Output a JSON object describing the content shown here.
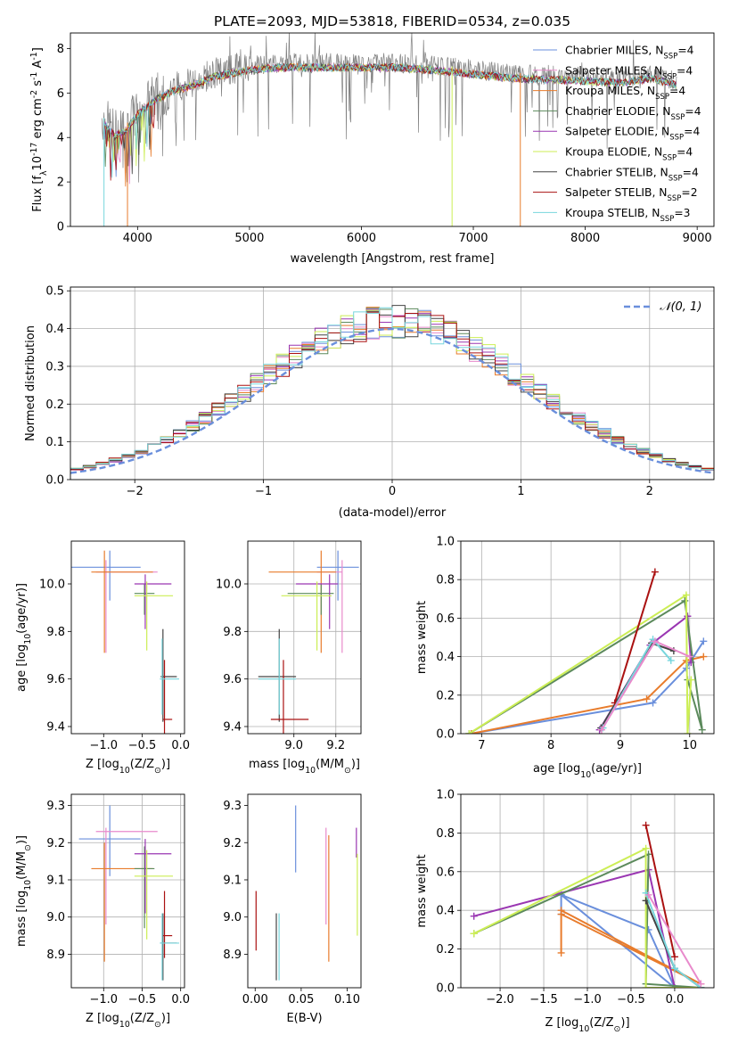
{
  "title": "PLATE=2093, MJD=53818, FIBERID=0534, z=0.035",
  "colors": {
    "chabrier_miles": "#6a8fdc",
    "salpeter_miles": "#e88acc",
    "kroupa_miles": "#e87c2c",
    "chabrier_elodie": "#5c8a5c",
    "salpeter_elodie": "#9a36b2",
    "kroupa_elodie": "#ccee55",
    "chabrier_stelib": "#444444",
    "salpeter_stelib": "#aa1111",
    "kroupa_stelib": "#77d6dd",
    "data": "#808080",
    "grid": "#b0b0b0"
  },
  "legend": [
    {
      "label": "Chabrier MILES, N",
      "sub": "SSP",
      "tail": "=4",
      "color": "#6a8fdc"
    },
    {
      "label": "Salpeter MILES, N",
      "sub": "SSP",
      "tail": "=4",
      "color": "#e88acc"
    },
    {
      "label": "Kroupa MILES, N",
      "sub": "SSP",
      "tail": "=4",
      "color": "#e87c2c"
    },
    {
      "label": "Chabrier ELODIE, N",
      "sub": "SSP",
      "tail": "=4",
      "color": "#5c8a5c"
    },
    {
      "label": "Salpeter ELODIE, N",
      "sub": "SSP",
      "tail": "=4",
      "color": "#9a36b2"
    },
    {
      "label": "Kroupa ELODIE, N",
      "sub": "SSP",
      "tail": "=4",
      "color": "#ccee55"
    },
    {
      "label": "Chabrier STELIB, N",
      "sub": "SSP",
      "tail": "=4",
      "color": "#444444"
    },
    {
      "label": "Salpeter STELIB, N",
      "sub": "SSP",
      "tail": "=2",
      "color": "#aa1111"
    },
    {
      "label": "Kroupa STELIB, N",
      "sub": "SSP",
      "tail": "=3",
      "color": "#77d6dd"
    }
  ],
  "chart_data": [
    {
      "id": "spectrum",
      "type": "line",
      "xlabel": "wavelength [Angstrom, rest frame]",
      "ylabel_parts": [
        "Flux [f",
        "λ",
        "10",
        "-17",
        " erg cm",
        "-2",
        " s",
        "-1",
        " A",
        "-1",
        "]"
      ],
      "xlim": [
        3400,
        9150
      ],
      "ylim": [
        0,
        8.7
      ],
      "xticks": [
        4000,
        5000,
        6000,
        7000,
        8000,
        9000
      ],
      "yticks": [
        0,
        2,
        4,
        6,
        8
      ],
      "grid": false,
      "legend_position": "top-right",
      "continuum_x": [
        3680,
        3800,
        3900,
        4000,
        4150,
        4300,
        4500,
        4700,
        5000,
        5300,
        5600,
        6000,
        6300,
        6600,
        7000,
        7400,
        7700,
        8000,
        8300,
        8600,
        8820
      ],
      "continuum_y": [
        5.0,
        4.3,
        4.6,
        5.3,
        5.9,
        6.3,
        6.6,
        7.0,
        7.3,
        7.4,
        7.4,
        7.4,
        7.4,
        7.3,
        7.1,
        6.9,
        6.85,
        6.8,
        6.7,
        6.9,
        6.6
      ]
    },
    {
      "id": "residuals",
      "type": "step-histogram",
      "xlabel": "(data-model)/error",
      "ylabel": "Normed distribution",
      "xlim": [
        -2.5,
        2.5
      ],
      "ylim": [
        0,
        0.51
      ],
      "xticks": [
        -2,
        -1,
        0,
        1,
        2
      ],
      "yticks": [
        0.0,
        0.1,
        0.2,
        0.3,
        0.4,
        0.5
      ],
      "grid": true,
      "bin_width": 0.1,
      "reference": {
        "label": "𝒩(0, 1)",
        "mean": 0,
        "sigma": 1
      },
      "legend_position": "top-right"
    },
    {
      "id": "age_vs_Z",
      "type": "errorbar",
      "xlabel_parts": [
        "Z [log",
        "10",
        "(Z/Z",
        "⊙",
        ")]"
      ],
      "ylabel_parts": [
        "age  [log",
        "10",
        "(age/yr)]"
      ],
      "xlim": [
        -1.42,
        0.05
      ],
      "ylim": [
        9.37,
        10.18
      ],
      "xticks": [
        -1.0,
        -0.5,
        0.0
      ],
      "yticks": [
        9.4,
        9.6,
        9.8,
        10.0
      ],
      "grid": false,
      "points": [
        {
          "model": "chabrier_miles",
          "x": -0.92,
          "y": 10.07,
          "xerr": [
            0.5,
            0.4
          ],
          "yerr": [
            0.14,
            0.07
          ]
        },
        {
          "model": "salpeter_miles",
          "x": -0.97,
          "y": 10.05,
          "xerr": [
            0.13,
            0.67
          ],
          "yerr": [
            0.34,
            0.05
          ]
        },
        {
          "model": "kroupa_miles",
          "x": -0.99,
          "y": 10.05,
          "xerr": [
            0.17,
            0.63
          ],
          "yerr": [
            0.34,
            0.09
          ]
        },
        {
          "model": "chabrier_elodie",
          "x": -0.47,
          "y": 9.96,
          "xerr": [
            0.13,
            0.13
          ],
          "yerr": [
            0.09,
            0.04
          ]
        },
        {
          "model": "salpeter_elodie",
          "x": -0.46,
          "y": 10.0,
          "xerr": [
            0.14,
            0.34
          ],
          "yerr": [
            0.19,
            0.04
          ]
        },
        {
          "model": "kroupa_elodie",
          "x": -0.44,
          "y": 9.95,
          "xerr": [
            0.16,
            0.34
          ],
          "yerr": [
            0.23,
            0.06
          ]
        },
        {
          "model": "chabrier_stelib",
          "x": -0.23,
          "y": 9.61,
          "xerr": [
            0.03,
            0.18
          ],
          "yerr": [
            0.19,
            0.2
          ]
        },
        {
          "model": "salpeter_stelib",
          "x": -0.21,
          "y": 9.43,
          "xerr": [
            0.02,
            0.1
          ],
          "yerr": [
            0.08,
            0.25
          ]
        },
        {
          "model": "kroupa_stelib",
          "x": -0.24,
          "y": 9.6,
          "xerr": [
            0.03,
            0.22
          ],
          "yerr": [
            0.15,
            0.17
          ]
        }
      ]
    },
    {
      "id": "age_vs_mass",
      "type": "errorbar",
      "xlabel_parts": [
        "mass [log",
        "10",
        "(M/M",
        "⊙",
        ")]"
      ],
      "ylabel": "",
      "xlim": [
        8.78,
        9.32
      ],
      "ylim": [
        9.37,
        10.18
      ],
      "xticks": [
        9.0,
        9.2
      ],
      "yticks": [
        9.4,
        9.6,
        9.8,
        10.0
      ],
      "grid": true,
      "points": [
        {
          "model": "chabrier_miles",
          "x": 9.21,
          "y": 10.07,
          "xerr": [
            0.1,
            0.1
          ],
          "yerr": [
            0.14,
            0.07
          ]
        },
        {
          "model": "salpeter_miles",
          "x": 9.23,
          "y": 10.05,
          "xerr": [
            0.12,
            0.0
          ],
          "yerr": [
            0.34,
            0.05
          ]
        },
        {
          "model": "kroupa_miles",
          "x": 9.13,
          "y": 10.05,
          "xerr": [
            0.25,
            0.07
          ],
          "yerr": [
            0.34,
            0.09
          ]
        },
        {
          "model": "chabrier_elodie",
          "x": 9.13,
          "y": 9.96,
          "xerr": [
            0.16,
            0.06
          ],
          "yerr": [
            0.09,
            0.04
          ]
        },
        {
          "model": "salpeter_elodie",
          "x": 9.17,
          "y": 10.0,
          "xerr": [
            0.16,
            0.04
          ],
          "yerr": [
            0.19,
            0.04
          ]
        },
        {
          "model": "kroupa_elodie",
          "x": 9.11,
          "y": 9.95,
          "xerr": [
            0.17,
            0.07
          ],
          "yerr": [
            0.23,
            0.06
          ]
        },
        {
          "model": "chabrier_stelib",
          "x": 8.93,
          "y": 9.61,
          "xerr": [
            0.1,
            0.08
          ],
          "yerr": [
            0.19,
            0.2
          ]
        },
        {
          "model": "salpeter_stelib",
          "x": 8.95,
          "y": 9.43,
          "xerr": [
            0.06,
            0.12
          ],
          "yerr": [
            0.08,
            0.25
          ]
        },
        {
          "model": "kroupa_stelib",
          "x": 8.93,
          "y": 9.6,
          "xerr": [
            0.1,
            0.08
          ],
          "yerr": [
            0.15,
            0.17
          ]
        }
      ]
    },
    {
      "id": "weight_vs_age",
      "type": "line",
      "xlabel_parts": [
        "age  [log",
        "10",
        "(age/yr)]"
      ],
      "ylabel": "mass weight",
      "xlim": [
        6.7,
        10.35
      ],
      "ylim": [
        0,
        1.0
      ],
      "xticks": [
        7,
        8,
        9,
        10
      ],
      "yticks": [
        0.0,
        0.2,
        0.4,
        0.6,
        0.8,
        1.0
      ],
      "grid": true,
      "series": [
        {
          "model": "chabrier_miles",
          "x": [
            6.85,
            9.47,
            9.95,
            10.2
          ],
          "y": [
            0.0,
            0.16,
            0.34,
            0.48
          ]
        },
        {
          "model": "kroupa_miles",
          "x": [
            6.85,
            9.38,
            9.95,
            10.2
          ],
          "y": [
            0.0,
            0.18,
            0.38,
            0.4
          ]
        },
        {
          "model": "salpeter_elodie",
          "x": [
            8.7,
            9.43,
            9.97,
            10.02
          ],
          "y": [
            0.02,
            0.46,
            0.61,
            0.37
          ]
        },
        {
          "model": "chabrier_elodie",
          "x": [
            6.82,
            9.93,
            10.18,
            9.97
          ],
          "y": [
            0.0,
            0.69,
            0.02,
            0.28
          ]
        },
        {
          "model": "kroupa_elodie",
          "x": [
            6.82,
            9.95,
            9.97,
            10.02
          ],
          "y": [
            0.0,
            0.72,
            0.0,
            0.28
          ]
        },
        {
          "model": "chabrier_stelib",
          "x": [
            8.72,
            9.45,
            9.77
          ],
          "y": [
            0.03,
            0.47,
            0.43
          ]
        },
        {
          "model": "salpeter_stelib",
          "x": [
            8.92,
            9.5
          ],
          "y": [
            0.16,
            0.84
          ]
        },
        {
          "model": "kroupa_stelib",
          "x": [
            8.75,
            9.47,
            9.73
          ],
          "y": [
            0.03,
            0.49,
            0.38
          ]
        },
        {
          "model": "salpeter_miles",
          "x": [
            8.73,
            9.5,
            10.0
          ],
          "y": [
            0.02,
            0.48,
            0.4
          ]
        }
      ]
    },
    {
      "id": "mass_vs_Z",
      "type": "errorbar",
      "xlabel_parts": [
        "Z [log",
        "10",
        "(Z/Z",
        "⊙",
        ")]"
      ],
      "ylabel_parts": [
        "mass [log",
        "10",
        "(M/M",
        "⊙",
        ")]"
      ],
      "xlim": [
        -1.42,
        0.05
      ],
      "ylim": [
        8.81,
        9.33
      ],
      "xticks": [
        -1.0,
        -0.5,
        0.0
      ],
      "yticks": [
        8.9,
        9.0,
        9.1,
        9.2,
        9.3
      ],
      "grid": true,
      "points": [
        {
          "model": "chabrier_miles",
          "x": -0.92,
          "y": 9.21,
          "xerr": [
            0.4,
            0.4
          ],
          "yerr": [
            0.1,
            0.09
          ]
        },
        {
          "model": "salpeter_miles",
          "x": -0.97,
          "y": 9.23,
          "xerr": [
            0.13,
            0.67
          ],
          "yerr": [
            0.25,
            0.01
          ]
        },
        {
          "model": "kroupa_miles",
          "x": -0.99,
          "y": 9.13,
          "xerr": [
            0.17,
            0.63
          ],
          "yerr": [
            0.25,
            0.07
          ]
        },
        {
          "model": "chabrier_elodie",
          "x": -0.47,
          "y": 9.13,
          "xerr": [
            0.13,
            0.13
          ],
          "yerr": [
            0.16,
            0.06
          ]
        },
        {
          "model": "salpeter_elodie",
          "x": -0.46,
          "y": 9.17,
          "xerr": [
            0.14,
            0.34
          ],
          "yerr": [
            0.16,
            0.04
          ]
        },
        {
          "model": "kroupa_elodie",
          "x": -0.44,
          "y": 9.11,
          "xerr": [
            0.16,
            0.34
          ],
          "yerr": [
            0.17,
            0.07
          ]
        },
        {
          "model": "chabrier_stelib",
          "x": -0.23,
          "y": 8.93,
          "xerr": [
            0.03,
            0.18
          ],
          "yerr": [
            0.1,
            0.08
          ]
        },
        {
          "model": "salpeter_stelib",
          "x": -0.21,
          "y": 8.95,
          "xerr": [
            0.02,
            0.1
          ],
          "yerr": [
            0.06,
            0.12
          ]
        },
        {
          "model": "kroupa_stelib",
          "x": -0.24,
          "y": 8.93,
          "xerr": [
            0.03,
            0.22
          ],
          "yerr": [
            0.1,
            0.08
          ]
        }
      ]
    },
    {
      "id": "mass_vs_EBV",
      "type": "errorbar",
      "xlabel": "E(B-V)",
      "ylabel": "",
      "xlim": [
        -0.008,
        0.115
      ],
      "ylim": [
        8.81,
        9.33
      ],
      "xticks": [
        0.0,
        0.05,
        0.1
      ],
      "yticks": [
        8.9,
        9.0,
        9.1,
        9.2,
        9.3
      ],
      "grid": false,
      "points": [
        {
          "model": "chabrier_miles",
          "x": 0.044,
          "y": 9.21,
          "yerr": [
            0.09,
            0.09
          ]
        },
        {
          "model": "salpeter_miles",
          "x": 0.077,
          "y": 9.15,
          "yerr": [
            0.17,
            0.09
          ]
        },
        {
          "model": "kroupa_miles",
          "x": 0.08,
          "y": 9.05,
          "yerr": [
            0.17,
            0.17
          ]
        },
        {
          "model": "salpeter_elodie",
          "x": 0.11,
          "y": 9.2,
          "yerr": [
            0.04,
            0.04
          ]
        },
        {
          "model": "kroupa_elodie",
          "x": 0.111,
          "y": 9.06,
          "yerr": [
            0.11,
            0.11
          ]
        },
        {
          "model": "chabrier_stelib",
          "x": 0.023,
          "y": 8.92,
          "yerr": [
            0.09,
            0.09
          ]
        },
        {
          "model": "salpeter_stelib",
          "x": 0.001,
          "y": 8.99,
          "yerr": [
            0.08,
            0.08
          ]
        },
        {
          "model": "kroupa_stelib",
          "x": 0.026,
          "y": 8.92,
          "yerr": [
            0.09,
            0.09
          ]
        }
      ]
    },
    {
      "id": "weight_vs_Z",
      "type": "line",
      "xlabel_parts": [
        "Z [log",
        "10",
        "(Z/Z",
        "⊙",
        ")]"
      ],
      "ylabel": "mass weight",
      "xlim": [
        -2.45,
        0.45
      ],
      "ylim": [
        0,
        1.0
      ],
      "xticks": [
        -2.0,
        -1.5,
        -1.0,
        -0.5,
        0.0
      ],
      "yticks": [
        0.0,
        0.2,
        0.4,
        0.6,
        0.8,
        1.0
      ],
      "grid": true,
      "series": [
        {
          "model": "chabrier_miles",
          "x": [
            -1.3,
            -1.3,
            -0.3,
            0.0,
            -1.3
          ],
          "y": [
            0.38,
            0.48,
            0.3,
            0.0,
            0.48
          ]
        },
        {
          "model": "kroupa_miles",
          "x": [
            -1.3,
            -1.3,
            0.3,
            -1.3
          ],
          "y": [
            0.18,
            0.38,
            0.02,
            0.4
          ]
        },
        {
          "model": "salpeter_elodie",
          "x": [
            -2.3,
            -0.3,
            0.0,
            0.3
          ],
          "y": [
            0.37,
            0.61,
            0.0,
            0.0
          ]
        },
        {
          "model": "chabrier_elodie",
          "x": [
            -2.3,
            -0.3,
            -0.33,
            0.3
          ],
          "y": [
            0.28,
            0.69,
            0.02,
            0.0
          ]
        },
        {
          "model": "kroupa_elodie",
          "x": [
            -2.3,
            -0.33,
            -0.33,
            0.3
          ],
          "y": [
            0.28,
            0.72,
            0.0,
            0.0
          ]
        },
        {
          "model": "salpeter_stelib",
          "x": [
            -0.33,
            0.0
          ],
          "y": [
            0.84,
            0.16
          ]
        },
        {
          "model": "chabrier_stelib",
          "x": [
            -0.33,
            0.0,
            0.3
          ],
          "y": [
            0.45,
            0.1,
            0.0
          ]
        },
        {
          "model": "kroupa_stelib",
          "x": [
            -0.33,
            0.0,
            0.3
          ],
          "y": [
            0.49,
            0.1,
            0.0
          ]
        },
        {
          "model": "salpeter_miles",
          "x": [
            -0.3,
            0.3
          ],
          "y": [
            0.48,
            0.02
          ]
        }
      ]
    }
  ]
}
